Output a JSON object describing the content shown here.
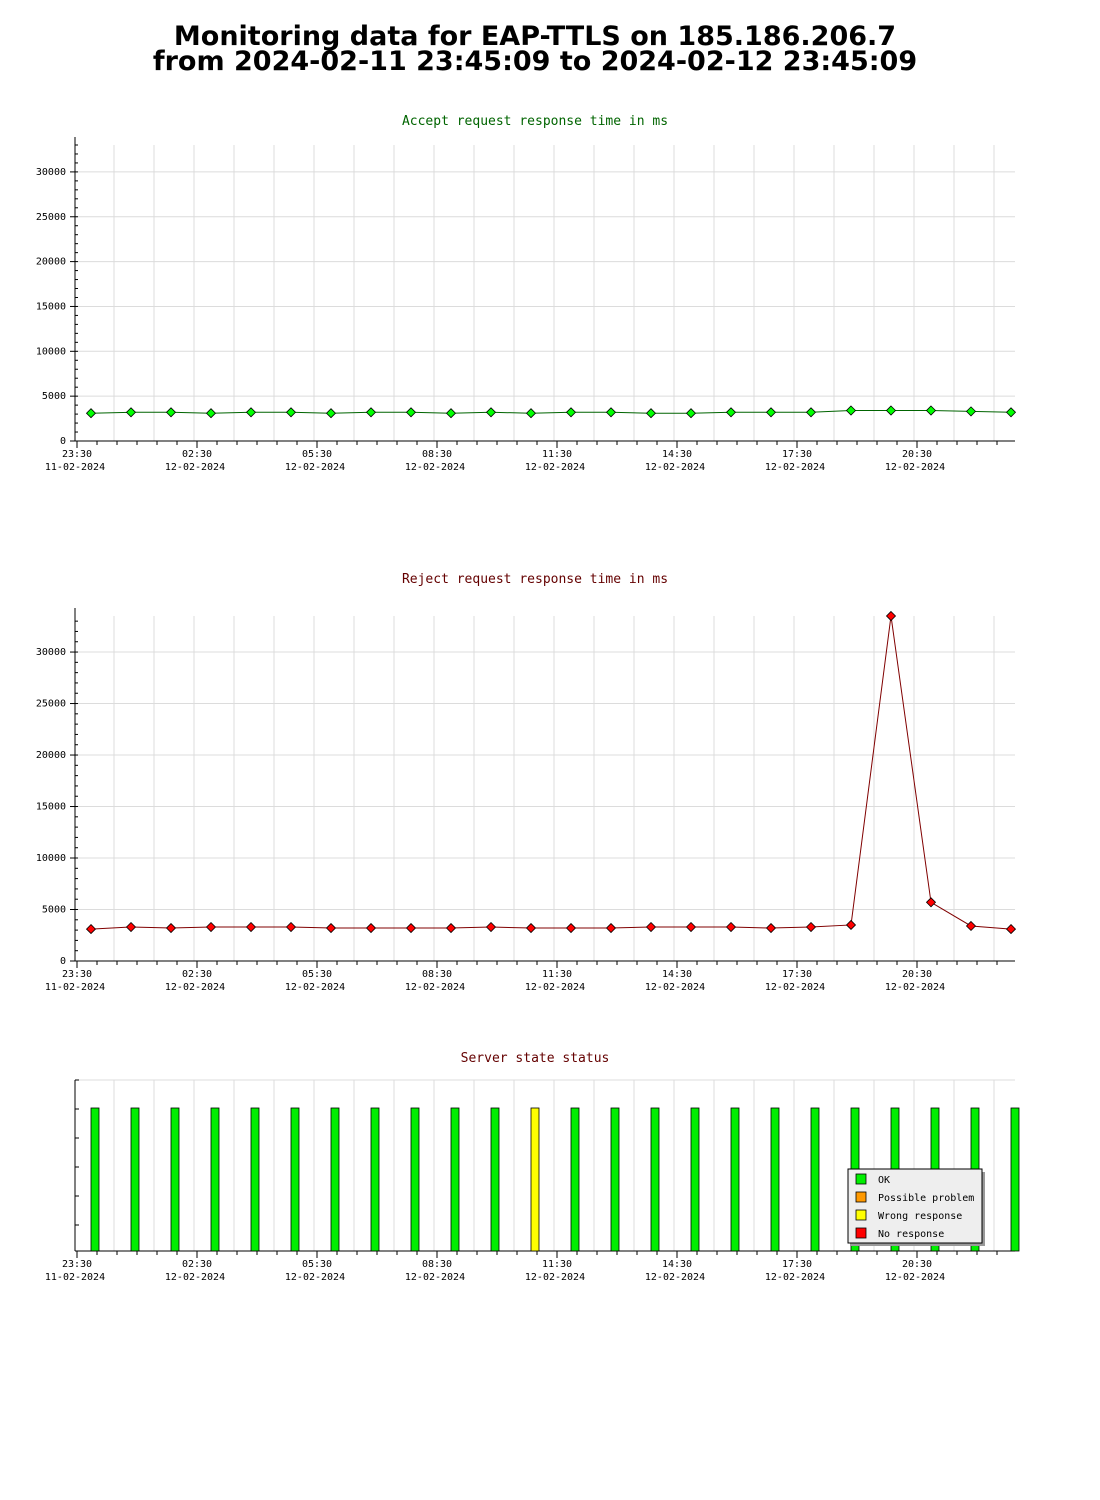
{
  "header": {
    "title_line1": "Monitoring data for EAP-TTLS on 185.186.206.7",
    "title_line2": "from 2024-02-11 23:45:09 to 2024-02-12 23:45:09"
  },
  "chart_data": [
    {
      "type": "line",
      "title": "Accept request response time in ms",
      "title_color": "#006400",
      "line_color": "#006400",
      "marker_color": "#00ff00",
      "ylim": [
        0,
        33000
      ],
      "y_ticks": [
        0,
        5000,
        10000,
        15000,
        20000,
        25000,
        30000
      ],
      "x_ticks": [
        {
          "time": "23:30",
          "date": "11-02-2024"
        },
        {
          "time": "02:30",
          "date": "12-02-2024"
        },
        {
          "time": "05:30",
          "date": "12-02-2024"
        },
        {
          "time": "08:30",
          "date": "12-02-2024"
        },
        {
          "time": "11:30",
          "date": "12-02-2024"
        },
        {
          "time": "14:30",
          "date": "12-02-2024"
        },
        {
          "time": "17:30",
          "date": "12-02-2024"
        },
        {
          "time": "20:30",
          "date": "12-02-2024"
        }
      ],
      "grid": true,
      "values": [
        3100,
        3200,
        3200,
        3100,
        3200,
        3200,
        3100,
        3200,
        3200,
        3100,
        3200,
        3100,
        3200,
        3200,
        3100,
        3100,
        3200,
        3200,
        3200,
        3400,
        3400,
        3400,
        3300,
        3200
      ]
    },
    {
      "type": "line",
      "title": "Reject request response time in ms",
      "title_color": "#640000",
      "line_color": "#800000",
      "marker_color": "#ff0000",
      "ylim": [
        0,
        33500
      ],
      "y_ticks": [
        0,
        5000,
        10000,
        15000,
        20000,
        25000,
        30000
      ],
      "x_ticks": [
        {
          "time": "23:30",
          "date": "11-02-2024"
        },
        {
          "time": "02:30",
          "date": "12-02-2024"
        },
        {
          "time": "05:30",
          "date": "12-02-2024"
        },
        {
          "time": "08:30",
          "date": "12-02-2024"
        },
        {
          "time": "11:30",
          "date": "12-02-2024"
        },
        {
          "time": "14:30",
          "date": "12-02-2024"
        },
        {
          "time": "17:30",
          "date": "12-02-2024"
        },
        {
          "time": "20:30",
          "date": "12-02-2024"
        }
      ],
      "grid": true,
      "values": [
        3100,
        3300,
        3200,
        3300,
        3300,
        3300,
        3200,
        3200,
        3200,
        3200,
        3300,
        3200,
        3200,
        3200,
        3300,
        3300,
        3300,
        3200,
        3300,
        3500,
        33500,
        5700,
        3400,
        3100
      ]
    },
    {
      "type": "bar",
      "title": "Server state status",
      "title_color": "#640000",
      "x_ticks": [
        {
          "time": "23:30",
          "date": "11-02-2024"
        },
        {
          "time": "02:30",
          "date": "12-02-2024"
        },
        {
          "time": "05:30",
          "date": "12-02-2024"
        },
        {
          "time": "08:30",
          "date": "12-02-2024"
        },
        {
          "time": "11:30",
          "date": "12-02-2024"
        },
        {
          "time": "14:30",
          "date": "12-02-2024"
        },
        {
          "time": "17:30",
          "date": "12-02-2024"
        },
        {
          "time": "20:30",
          "date": "12-02-2024"
        }
      ],
      "legend_position": "bottom-right",
      "legend": [
        {
          "label": "OK",
          "color": "#00ee00"
        },
        {
          "label": "Possible problem",
          "color": "#ff9900"
        },
        {
          "label": "Wrong response",
          "color": "#ffff00"
        },
        {
          "label": "No response",
          "color": "#ff0000"
        }
      ],
      "states": [
        0,
        0,
        0,
        0,
        0,
        0,
        0,
        0,
        0,
        0,
        0,
        2,
        0,
        0,
        0,
        0,
        0,
        0,
        0,
        0,
        0,
        0,
        0,
        0
      ]
    }
  ]
}
